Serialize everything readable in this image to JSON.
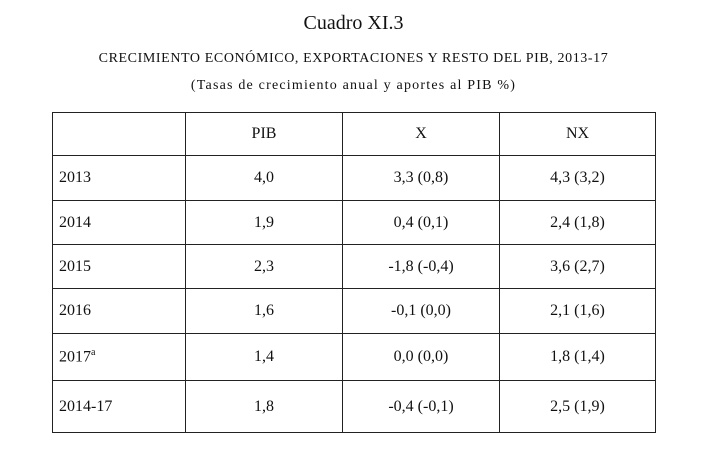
{
  "header": {
    "title": "Cuadro XI.3",
    "subtitle": "CRECIMIENTO ECONÓMICO, EXPORTACIONES Y RESTO DEL PIB, 2013-17",
    "note": "(Tasas de crecimiento anual y aportes al PIB %)"
  },
  "table": {
    "columns": [
      "",
      "PIB",
      "X",
      "NX"
    ],
    "rows": [
      [
        {
          "text": "2013"
        },
        "4,0",
        "3,3 (0,8)",
        "4,3 (3,2)"
      ],
      [
        {
          "text": "2014"
        },
        "1,9",
        "0,4 (0,1)",
        "2,4 (1,8)"
      ],
      [
        {
          "text": "2015"
        },
        "2,3",
        "-1,8 (-0,4)",
        "3,6 (2,7)"
      ],
      [
        {
          "text": "2016"
        },
        "1,6",
        "-0,1 (0,0)",
        "2,1 (1,6)"
      ],
      [
        {
          "text": "2017",
          "sup": "a"
        },
        "1,4",
        "0,0 (0,0)",
        "1,8 (1,4)"
      ],
      [
        {
          "text": "2014-17"
        },
        "1,8",
        "-0,4 (-0,1)",
        "2,5 (1,9)"
      ]
    ]
  }
}
